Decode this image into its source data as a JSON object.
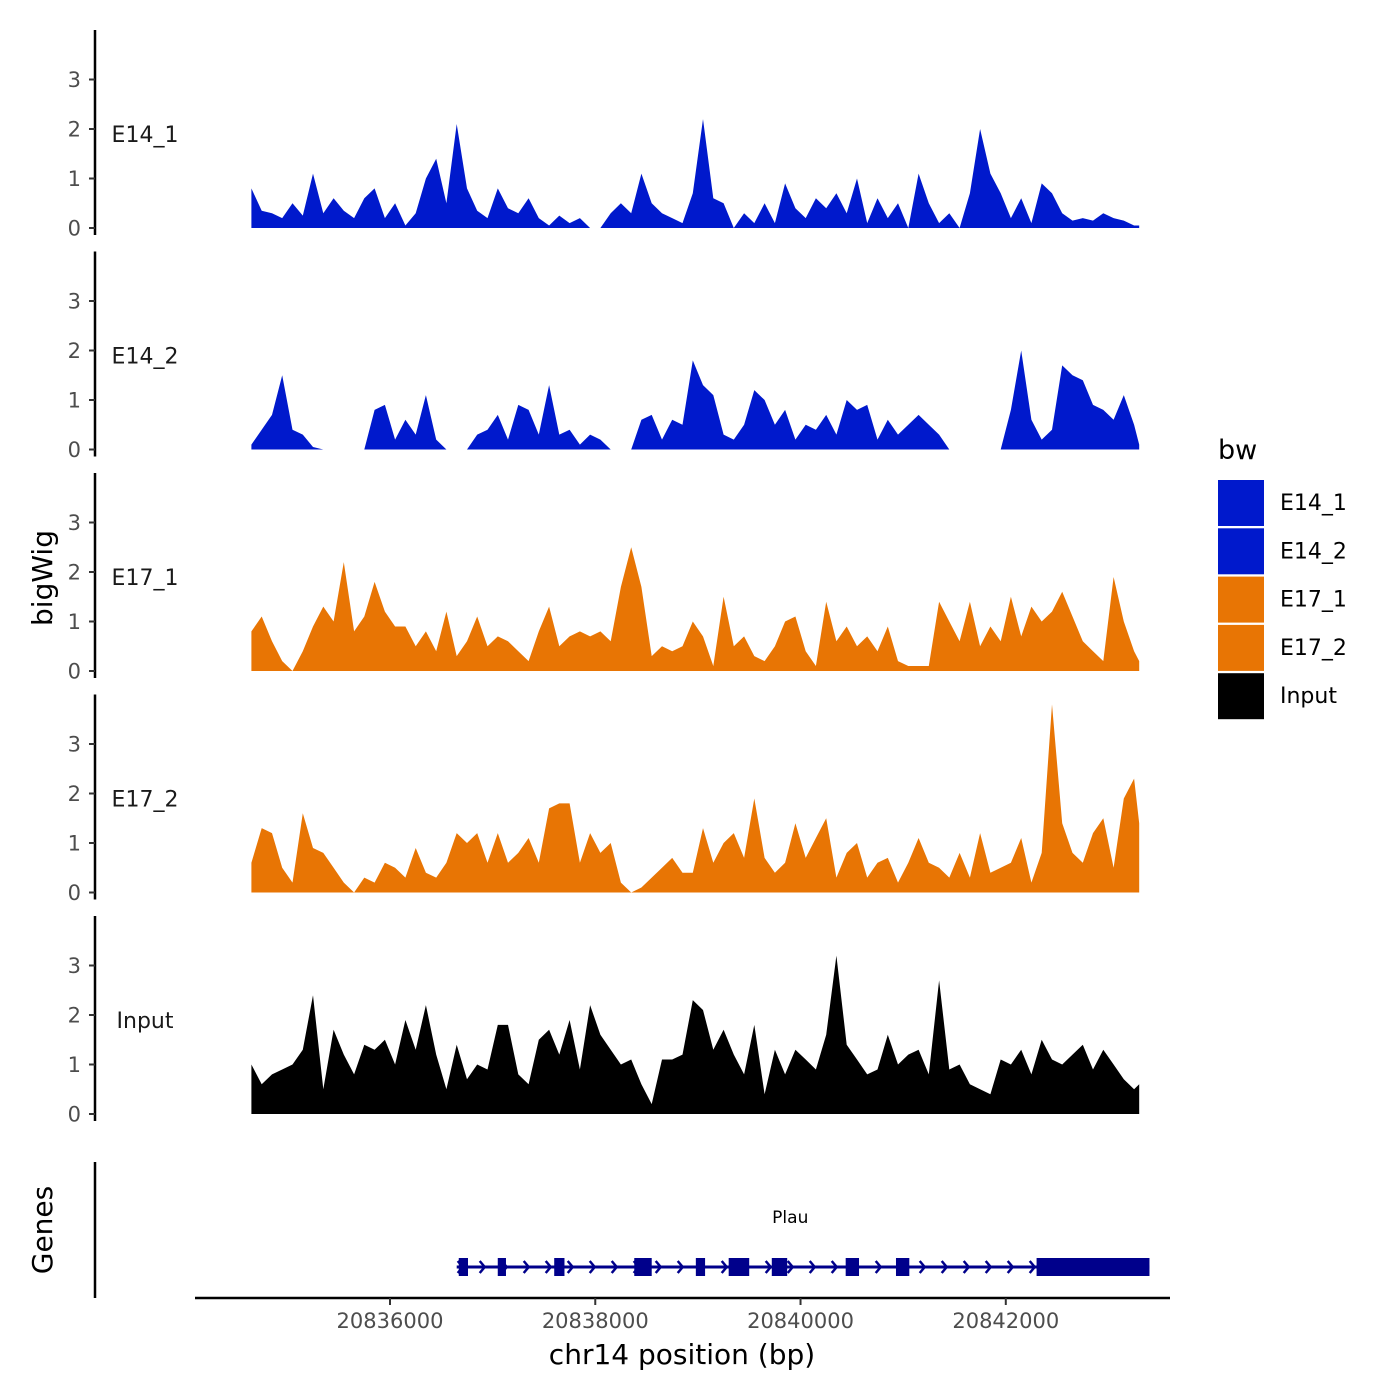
{
  "chart_data": {
    "type": "area",
    "xlabel": "chr14 position (bp)",
    "ylabel": "bigWig",
    "genes_panel_label": "Genes",
    "x_ticks": [
      20836000,
      20838000,
      20840000,
      20842000
    ],
    "x_tick_labels": [
      "20836000",
      "20838000",
      "20840000",
      "20842000"
    ],
    "xlim": [
      20834100,
      20843600
    ],
    "ylim": [
      0,
      4
    ],
    "y_ticks": [
      0,
      1,
      2,
      3
    ],
    "y_tick_labels": [
      "0",
      "1",
      "2",
      "3"
    ],
    "legend": {
      "title": "bw",
      "position": "right",
      "entries": [
        {
          "label": "E14_1",
          "color": "#0019cc"
        },
        {
          "label": "E14_2",
          "color": "#0019cc"
        },
        {
          "label": "E17_1",
          "color": "#e87504"
        },
        {
          "label": "E17_2",
          "color": "#e87504"
        },
        {
          "label": "Input",
          "color": "#000000"
        }
      ]
    },
    "series": [
      {
        "name": "E14_1",
        "color": "#0019cc",
        "x": [
          20834650,
          20834750,
          20834850,
          20834950,
          20835050,
          20835150,
          20835250,
          20835350,
          20835450,
          20835550,
          20835650,
          20835750,
          20835850,
          20835950,
          20836050,
          20836150,
          20836250,
          20836350,
          20836450,
          20836550,
          20836650,
          20836750,
          20836850,
          20836950,
          20837050,
          20837150,
          20837250,
          20837350,
          20837450,
          20837550,
          20837650,
          20837750,
          20837850,
          20837950,
          20838050,
          20838150,
          20838250,
          20838350,
          20838450,
          20838550,
          20838650,
          20838750,
          20838850,
          20838950,
          20839050,
          20839150,
          20839250,
          20839350,
          20839450,
          20839550,
          20839650,
          20839750,
          20839850,
          20839950,
          20840050,
          20840150,
          20840250,
          20840350,
          20840450,
          20840550,
          20840650,
          20840750,
          20840850,
          20840950,
          20841050,
          20841150,
          20841250,
          20841350,
          20841450,
          20841550,
          20841650,
          20841750,
          20841850,
          20841950,
          20842050,
          20842150,
          20842250,
          20842350,
          20842450,
          20842550,
          20842650,
          20842750,
          20842850,
          20842950,
          20843050,
          20843150,
          20843250,
          20843300
        ],
        "values": [
          0.8,
          0.35,
          0.3,
          0.2,
          0.5,
          0.25,
          1.1,
          0.3,
          0.6,
          0.35,
          0.2,
          0.6,
          0.8,
          0.2,
          0.5,
          0.05,
          0.3,
          1.0,
          1.4,
          0.5,
          2.1,
          0.8,
          0.35,
          0.2,
          0.8,
          0.4,
          0.3,
          0.6,
          0.2,
          0.05,
          0.25,
          0.1,
          0.2,
          0,
          0,
          0.3,
          0.5,
          0.3,
          1.1,
          0.5,
          0.3,
          0.2,
          0.1,
          0.7,
          2.2,
          0.6,
          0.5,
          0,
          0.3,
          0.1,
          0.5,
          0.1,
          0.9,
          0.4,
          0.2,
          0.6,
          0.4,
          0.7,
          0.3,
          1.0,
          0.1,
          0.6,
          0.2,
          0.5,
          0,
          1.1,
          0.5,
          0.1,
          0.3,
          0,
          0.7,
          2.0,
          1.1,
          0.7,
          0.2,
          0.6,
          0.1,
          0.9,
          0.7,
          0.3,
          0.15,
          0.2,
          0.15,
          0.3,
          0.2,
          0.15,
          0.05,
          0.05
        ]
      },
      {
        "name": "E14_2",
        "color": "#0019cc",
        "x": [
          20834650,
          20834750,
          20834850,
          20834950,
          20835050,
          20835150,
          20835250,
          20835350,
          20835450,
          20835550,
          20835650,
          20835750,
          20835850,
          20835950,
          20836050,
          20836150,
          20836250,
          20836350,
          20836450,
          20836550,
          20836650,
          20836750,
          20836850,
          20836950,
          20837050,
          20837150,
          20837250,
          20837350,
          20837450,
          20837550,
          20837650,
          20837750,
          20837850,
          20837950,
          20838050,
          20838150,
          20838250,
          20838350,
          20838450,
          20838550,
          20838650,
          20838750,
          20838850,
          20838950,
          20839050,
          20839150,
          20839250,
          20839350,
          20839450,
          20839550,
          20839650,
          20839750,
          20839850,
          20839950,
          20840050,
          20840150,
          20840250,
          20840350,
          20840450,
          20840550,
          20840650,
          20840750,
          20840850,
          20840950,
          20841050,
          20841150,
          20841250,
          20841350,
          20841450,
          20841550,
          20841650,
          20841750,
          20841850,
          20841950,
          20842050,
          20842150,
          20842250,
          20842350,
          20842450,
          20842550,
          20842650,
          20842750,
          20842850,
          20842950,
          20843050,
          20843150,
          20843250,
          20843300
        ],
        "values": [
          0.1,
          0.4,
          0.7,
          1.5,
          0.4,
          0.3,
          0.05,
          0,
          0,
          0,
          0,
          0,
          0.8,
          0.9,
          0.2,
          0.6,
          0.3,
          1.1,
          0.2,
          0,
          0,
          0,
          0.3,
          0.4,
          0.7,
          0.2,
          0.9,
          0.8,
          0.3,
          1.3,
          0.3,
          0.4,
          0.1,
          0.3,
          0.2,
          0,
          0,
          0,
          0.6,
          0.7,
          0.2,
          0.6,
          0.5,
          1.8,
          1.3,
          1.1,
          0.3,
          0.2,
          0.5,
          1.2,
          1.0,
          0.5,
          0.8,
          0.2,
          0.5,
          0.4,
          0.7,
          0.3,
          1.0,
          0.8,
          0.9,
          0.2,
          0.6,
          0.3,
          0.5,
          0.7,
          0.5,
          0.3,
          0,
          0,
          0,
          0,
          0,
          0,
          0.8,
          2.0,
          0.6,
          0.2,
          0.4,
          1.7,
          1.5,
          1.4,
          0.9,
          0.8,
          0.6,
          1.1,
          0.5,
          0.1
        ]
      },
      {
        "name": "E17_1",
        "color": "#e87504",
        "x": [
          20834650,
          20834750,
          20834850,
          20834950,
          20835050,
          20835150,
          20835250,
          20835350,
          20835450,
          20835550,
          20835650,
          20835750,
          20835850,
          20835950,
          20836050,
          20836150,
          20836250,
          20836350,
          20836450,
          20836550,
          20836650,
          20836750,
          20836850,
          20836950,
          20837050,
          20837150,
          20837250,
          20837350,
          20837450,
          20837550,
          20837650,
          20837750,
          20837850,
          20837950,
          20838050,
          20838150,
          20838250,
          20838350,
          20838450,
          20838550,
          20838650,
          20838750,
          20838850,
          20838950,
          20839050,
          20839150,
          20839250,
          20839350,
          20839450,
          20839550,
          20839650,
          20839750,
          20839850,
          20839950,
          20840050,
          20840150,
          20840250,
          20840350,
          20840450,
          20840550,
          20840650,
          20840750,
          20840850,
          20840950,
          20841050,
          20841150,
          20841250,
          20841350,
          20841450,
          20841550,
          20841650,
          20841750,
          20841850,
          20841950,
          20842050,
          20842150,
          20842250,
          20842350,
          20842450,
          20842550,
          20842650,
          20842750,
          20842850,
          20842950,
          20843050,
          20843150,
          20843250,
          20843300
        ],
        "values": [
          0.8,
          1.1,
          0.6,
          0.2,
          0,
          0.4,
          0.9,
          1.3,
          1.0,
          2.2,
          0.8,
          1.1,
          1.8,
          1.2,
          0.9,
          0.9,
          0.5,
          0.8,
          0.4,
          1.2,
          0.3,
          0.6,
          1.1,
          0.5,
          0.7,
          0.6,
          0.4,
          0.2,
          0.8,
          1.3,
          0.5,
          0.7,
          0.8,
          0.7,
          0.8,
          0.6,
          1.7,
          2.5,
          1.7,
          0.3,
          0.5,
          0.4,
          0.5,
          1.0,
          0.7,
          0.1,
          1.5,
          0.5,
          0.7,
          0.3,
          0.2,
          0.5,
          1.0,
          1.1,
          0.4,
          0.1,
          1.4,
          0.6,
          0.9,
          0.5,
          0.7,
          0.4,
          0.9,
          0.2,
          0.1,
          0.1,
          0.1,
          1.4,
          1.0,
          0.6,
          1.4,
          0.5,
          0.9,
          0.6,
          1.5,
          0.7,
          1.3,
          1.0,
          1.2,
          1.6,
          1.1,
          0.6,
          0.4,
          0.2,
          1.9,
          1.0,
          0.4,
          0.2
        ]
      },
      {
        "name": "E17_2",
        "color": "#e87504",
        "x": [
          20834650,
          20834750,
          20834850,
          20834950,
          20835050,
          20835150,
          20835250,
          20835350,
          20835450,
          20835550,
          20835650,
          20835750,
          20835850,
          20835950,
          20836050,
          20836150,
          20836250,
          20836350,
          20836450,
          20836550,
          20836650,
          20836750,
          20836850,
          20836950,
          20837050,
          20837150,
          20837250,
          20837350,
          20837450,
          20837550,
          20837650,
          20837750,
          20837850,
          20837950,
          20838050,
          20838150,
          20838250,
          20838350,
          20838450,
          20838550,
          20838650,
          20838750,
          20838850,
          20838950,
          20839050,
          20839150,
          20839250,
          20839350,
          20839450,
          20839550,
          20839650,
          20839750,
          20839850,
          20839950,
          20840050,
          20840150,
          20840250,
          20840350,
          20840450,
          20840550,
          20840650,
          20840750,
          20840850,
          20840950,
          20841050,
          20841150,
          20841250,
          20841350,
          20841450,
          20841550,
          20841650,
          20841750,
          20841850,
          20841950,
          20842050,
          20842150,
          20842250,
          20842350,
          20842450,
          20842550,
          20842650,
          20842750,
          20842850,
          20842950,
          20843050,
          20843150,
          20843250,
          20843300
        ],
        "values": [
          0.6,
          1.3,
          1.2,
          0.5,
          0.2,
          1.6,
          0.9,
          0.8,
          0.5,
          0.2,
          0,
          0.3,
          0.2,
          0.6,
          0.5,
          0.3,
          0.9,
          0.4,
          0.3,
          0.6,
          1.2,
          1.0,
          1.2,
          0.6,
          1.2,
          0.6,
          0.8,
          1.1,
          0.6,
          1.7,
          1.8,
          1.8,
          0.6,
          1.2,
          0.8,
          1.0,
          0.2,
          0,
          0.1,
          0.3,
          0.5,
          0.7,
          0.4,
          0.4,
          1.3,
          0.6,
          1.0,
          1.2,
          0.7,
          1.9,
          0.7,
          0.4,
          0.6,
          1.4,
          0.7,
          1.1,
          1.5,
          0.3,
          0.8,
          1.0,
          0.3,
          0.6,
          0.7,
          0.2,
          0.6,
          1.1,
          0.6,
          0.5,
          0.3,
          0.8,
          0.3,
          1.2,
          0.4,
          0.5,
          0.6,
          1.1,
          0.2,
          0.8,
          3.8,
          1.4,
          0.8,
          0.6,
          1.2,
          1.5,
          0.5,
          1.9,
          2.3,
          1.4
        ]
      },
      {
        "name": "Input",
        "color": "#000000",
        "x": [
          20834650,
          20834750,
          20834850,
          20834950,
          20835050,
          20835150,
          20835250,
          20835350,
          20835450,
          20835550,
          20835650,
          20835750,
          20835850,
          20835950,
          20836050,
          20836150,
          20836250,
          20836350,
          20836450,
          20836550,
          20836650,
          20836750,
          20836850,
          20836950,
          20837050,
          20837150,
          20837250,
          20837350,
          20837450,
          20837550,
          20837650,
          20837750,
          20837850,
          20837950,
          20838050,
          20838150,
          20838250,
          20838350,
          20838450,
          20838550,
          20838650,
          20838750,
          20838850,
          20838950,
          20839050,
          20839150,
          20839250,
          20839350,
          20839450,
          20839550,
          20839650,
          20839750,
          20839850,
          20839950,
          20840050,
          20840150,
          20840250,
          20840350,
          20840450,
          20840550,
          20840650,
          20840750,
          20840850,
          20840950,
          20841050,
          20841150,
          20841250,
          20841350,
          20841450,
          20841550,
          20841650,
          20841750,
          20841850,
          20841950,
          20842050,
          20842150,
          20842250,
          20842350,
          20842450,
          20842550,
          20842650,
          20842750,
          20842850,
          20842950,
          20843050,
          20843150,
          20843250,
          20843300
        ],
        "values": [
          1.0,
          0.6,
          0.8,
          0.9,
          1.0,
          1.3,
          2.4,
          0.5,
          1.7,
          1.2,
          0.8,
          1.4,
          1.3,
          1.5,
          1.0,
          1.9,
          1.3,
          2.2,
          1.2,
          0.5,
          1.4,
          0.7,
          1.0,
          0.9,
          1.8,
          1.8,
          0.8,
          0.6,
          1.5,
          1.7,
          1.2,
          1.9,
          0.9,
          2.2,
          1.6,
          1.3,
          1.0,
          1.1,
          0.6,
          0.2,
          1.1,
          1.1,
          1.2,
          2.3,
          2.1,
          1.3,
          1.7,
          1.2,
          0.8,
          1.8,
          0.4,
          1.3,
          0.8,
          1.3,
          1.1,
          0.9,
          1.6,
          3.2,
          1.4,
          1.1,
          0.8,
          0.9,
          1.6,
          1.0,
          1.2,
          1.3,
          0.8,
          2.7,
          0.9,
          1.0,
          0.6,
          0.5,
          0.4,
          1.1,
          1.0,
          1.3,
          0.8,
          1.5,
          1.1,
          1.0,
          1.2,
          1.4,
          0.9,
          1.3,
          1.0,
          0.7,
          0.5,
          0.6
        ]
      }
    ],
    "genes": [
      {
        "name": "Plau",
        "strand": "+",
        "start": 20836650,
        "end": 20843400,
        "color": "#00008b",
        "exons": [
          [
            20836670,
            20836760
          ],
          [
            20837050,
            20837130
          ],
          [
            20837600,
            20837700
          ],
          [
            20838380,
            20838550
          ],
          [
            20838980,
            20839070
          ],
          [
            20839300,
            20839500
          ],
          [
            20839720,
            20839870
          ],
          [
            20840440,
            20840570
          ],
          [
            20840930,
            20841060
          ],
          [
            20842300,
            20843400
          ]
        ]
      }
    ]
  }
}
